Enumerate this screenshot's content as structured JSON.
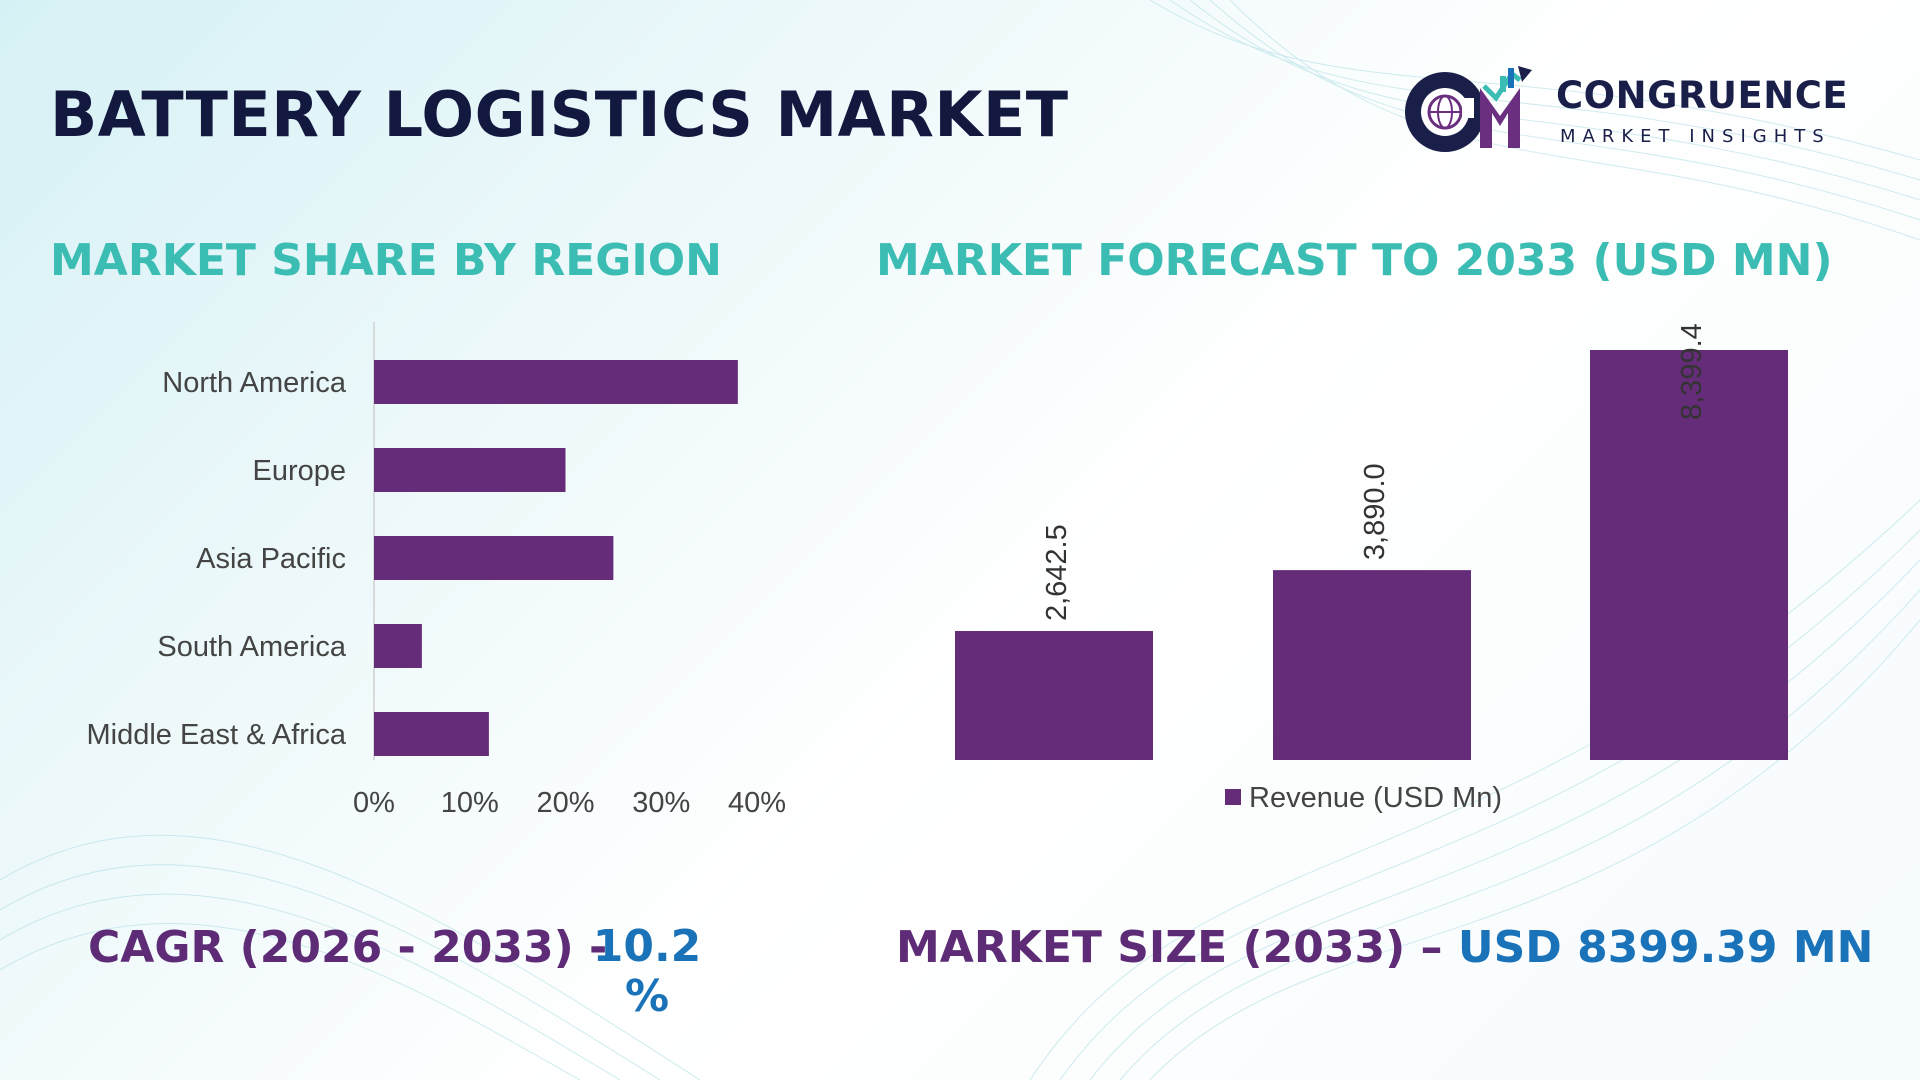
{
  "header": {
    "title": "BATTERY LOGISTICS MARKET"
  },
  "logo": {
    "name": "CONGRUENCE",
    "subtitle": "MARKET INSIGHTS",
    "monogram": "CM"
  },
  "sections": {
    "region_title": "MARKET SHARE BY REGION",
    "forecast_title": "MARKET FORECAST TO 2033 (USD MN)"
  },
  "stats": {
    "cagr_label": "CAGR (2026 - 2033) -",
    "cagr_value": "10.2 %",
    "size_label": "MARKET SIZE (2033) –",
    "size_value": "USD 8399.39 MN"
  },
  "colors": {
    "bar": "#652d79",
    "title": "#13183f",
    "section": "#3cbdb4",
    "stat_label": "#5e2b76",
    "stat_value": "#1a73b8"
  },
  "chart_data": [
    {
      "type": "bar",
      "orientation": "horizontal",
      "categories": [
        "North America",
        "Europe",
        "Asia Pacific",
        "South America",
        "Middle East & Africa"
      ],
      "values": [
        38,
        20,
        25,
        5,
        12
      ],
      "unit": "%",
      "xlim": [
        0,
        40
      ],
      "xticks": [
        "0%",
        "10%",
        "20%",
        "30%",
        "40%"
      ],
      "grid": false
    },
    {
      "type": "bar",
      "orientation": "vertical",
      "series": [
        {
          "name": "Revenue (USD Mn)",
          "values": [
            2642.5,
            3890.0,
            8399.4
          ]
        }
      ],
      "data_labels": [
        "2,642.5",
        "3,890.0",
        "8,399.4"
      ],
      "legend": "bottom",
      "grid": false
    }
  ]
}
